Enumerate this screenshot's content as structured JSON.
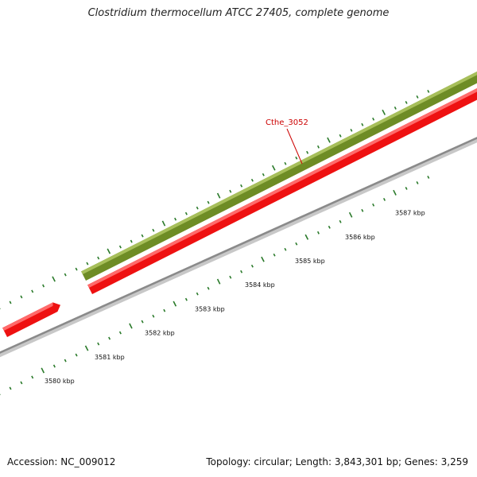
{
  "title": "Clostridium thermocellum ATCC 27405, complete genome",
  "footer": {
    "accession": "Accession: NC_009012",
    "summary": "Topology: circular; Length: 3,843,301 bp; Genes: 3,259"
  },
  "colors": {
    "forward_feature": "#6e8c25",
    "reverse_feature": "#ee1111",
    "backbone": "#8a8a8a",
    "ticks": "#2a7a2a",
    "gene_label": "#cc0000"
  },
  "gene_label": "Cthe_3052",
  "scale": {
    "unit": "kbp",
    "ticks": [
      {
        "kbp": 3580,
        "label": "3580 kbp"
      },
      {
        "kbp": 3581,
        "label": "3581 kbp"
      },
      {
        "kbp": 3582,
        "label": "3582 kbp"
      },
      {
        "kbp": 3583,
        "label": "3583 kbp"
      },
      {
        "kbp": 3584,
        "label": "3584 kbp"
      },
      {
        "kbp": 3585,
        "label": "3585 kbp"
      },
      {
        "kbp": 3586,
        "label": "3586 kbp"
      },
      {
        "kbp": 3587,
        "label": "3587 kbp"
      }
    ]
  }
}
